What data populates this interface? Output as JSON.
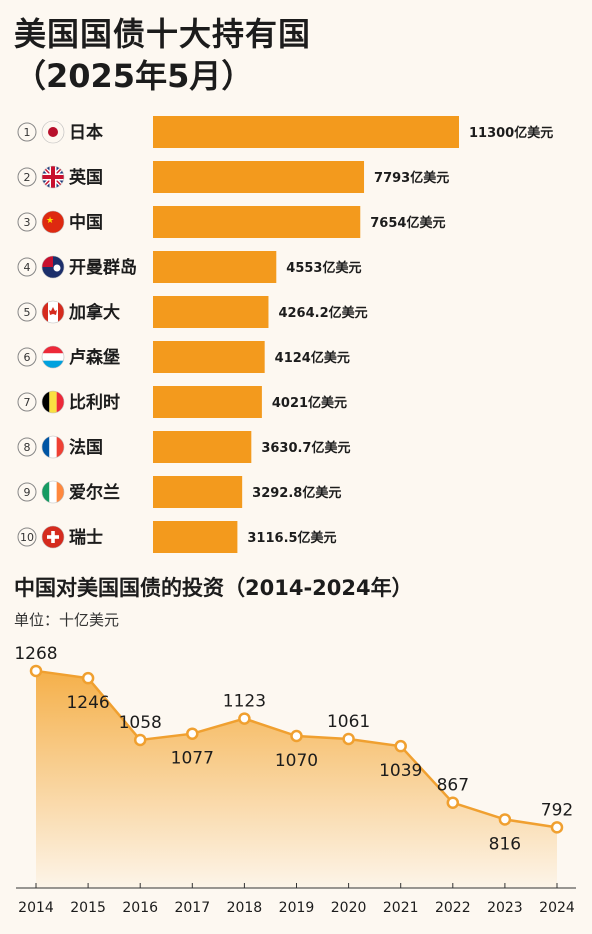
{
  "title": "美国国债十大持有国",
  "subtitle": "（2025年5月）",
  "section2_title": "中国对美国国债的投资（2014-2024年）",
  "unit": "单位：十亿美元",
  "chart_data": [
    {
      "type": "bar",
      "orientation": "horizontal",
      "title": "美国国债十大持有国",
      "subtitle": "（2025年5月）",
      "bar_color": "#f39a1d",
      "categories": [
        "日本",
        "英国",
        "中国",
        "开曼群岛",
        "加拿大",
        "卢森堡",
        "比利时",
        "法国",
        "爱尔兰",
        "瑞士"
      ],
      "ranks": [
        "1",
        "2",
        "3",
        "4",
        "5",
        "6",
        "7",
        "8",
        "9",
        "10"
      ],
      "flags": [
        "japan-flag-icon",
        "uk-flag-icon",
        "china-flag-icon",
        "cayman-flag-icon",
        "canada-flag-icon",
        "luxembourg-flag-icon",
        "belgium-flag-icon",
        "france-flag-icon",
        "ireland-flag-icon",
        "switzerland-flag-icon"
      ],
      "values": [
        11300,
        7793,
        7654,
        4553,
        4264.2,
        4124,
        4021,
        3630.7,
        3292.8,
        3116.5
      ],
      "value_labels": [
        "11300亿美元",
        "7793亿美元",
        "7654亿美元",
        "4553亿美元",
        "4264.2亿美元",
        "4124亿美元",
        "4021亿美元",
        "3630.7亿美元",
        "3292.8亿美元",
        "3116.5亿美元"
      ]
    },
    {
      "type": "area",
      "title": "中国对美国国债的投资（2014-2024年）",
      "ylabel": "单位：十亿美元",
      "x": [
        "2014",
        "2015",
        "2016",
        "2017",
        "2018",
        "2019",
        "2020",
        "2021",
        "2022",
        "2023",
        "2024"
      ],
      "values": [
        1268,
        1246,
        1058,
        1077,
        1123,
        1070,
        1061,
        1039,
        867,
        816,
        792
      ],
      "value_labels": [
        "1268",
        "1246",
        "1058",
        "1077",
        "1123",
        "1070",
        "1061",
        "1039",
        "867",
        "816",
        "792"
      ],
      "line_color": "#f0a030",
      "fill_color": "#f5b04a"
    }
  ]
}
